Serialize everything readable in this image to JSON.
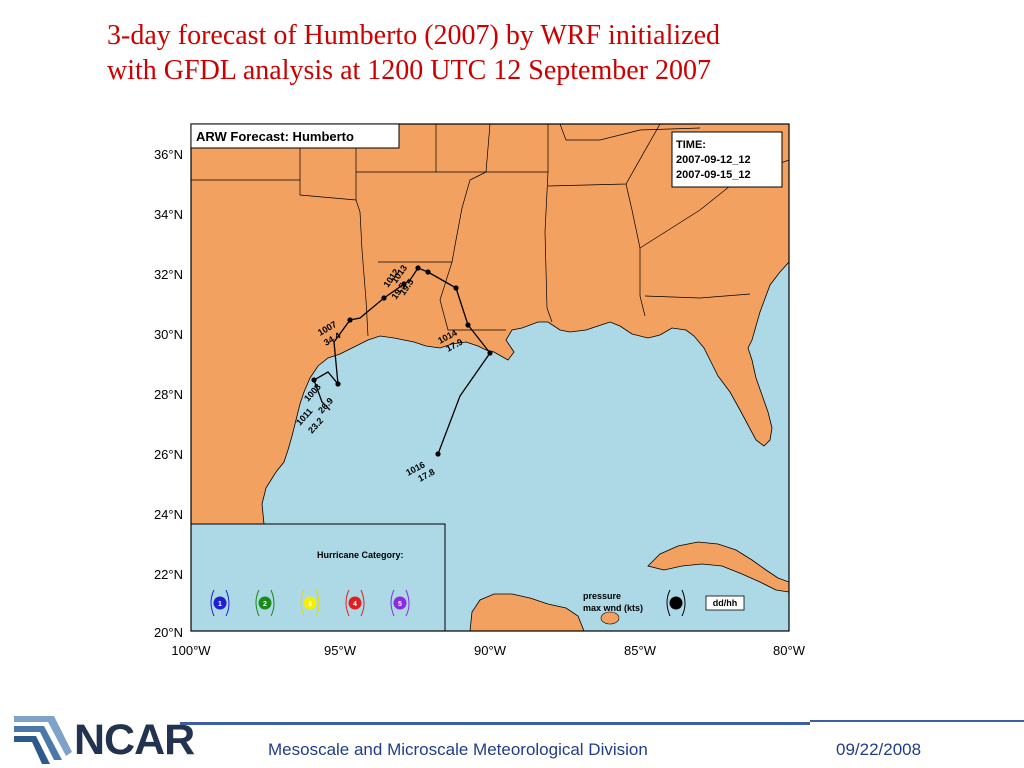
{
  "slide": {
    "title_line1": "3-day forecast of Humberto (2007) by WRF initialized",
    "title_line2": "with GFDL analysis at 1200 UTC 12 September 2007"
  },
  "map": {
    "title": "ARW Forecast: Humberto",
    "time_box": {
      "label": "TIME:",
      "start": "2007-09-12_12",
      "end": "2007-09-15_12"
    },
    "lat_labels": [
      "36°N",
      "34°N",
      "32°N",
      "30°N",
      "28°N",
      "26°N",
      "24°N",
      "22°N",
      "20°N"
    ],
    "lon_labels": [
      "100°W",
      "95°W",
      "90°W",
      "85°W",
      "80°W"
    ],
    "extent": {
      "lon": [
        -100,
        -80
      ],
      "lat": [
        20,
        36.8
      ]
    },
    "colors": {
      "land": "#f2a160",
      "ocean": "#add8e6",
      "track": "#000000"
    },
    "track_annotations": [
      {
        "pressure": "1016",
        "wind": "17.8"
      },
      {
        "pressure": "1014",
        "wind": "17.9"
      },
      {
        "pressure": "1013",
        "wind": "19.5"
      },
      {
        "pressure": "1012",
        "wind": "19.5"
      },
      {
        "pressure": "1007",
        "wind": "34.4"
      },
      {
        "pressure": "1008",
        "wind": "26.9"
      },
      {
        "pressure": "1011",
        "wind": "23.2"
      }
    ],
    "legend": {
      "title": "Hurricane Category:",
      "categories": [
        {
          "label": "1",
          "color": "#1f1fd0"
        },
        {
          "label": "2",
          "color": "#1a8a1a"
        },
        {
          "label": "3",
          "color": "#f0f000"
        },
        {
          "label": "4",
          "color": "#e02020"
        },
        {
          "label": "5",
          "color": "#8a2be2"
        }
      ],
      "pressure_label": "pressure",
      "wind_label": "max wnd (kts)",
      "ddhh_label": "dd/hh"
    }
  },
  "footer": {
    "logo_text": "NCAR",
    "division": "Mesoscale and Microscale Meteorological Division",
    "date": "09/22/2008"
  }
}
